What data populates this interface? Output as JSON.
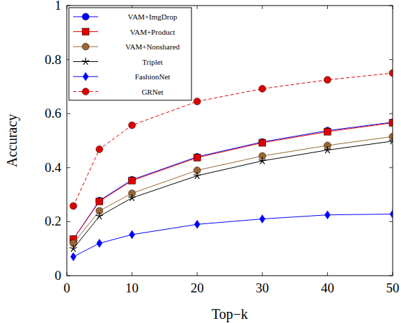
{
  "chart_data": {
    "type": "line",
    "x_label": "Top−k",
    "y_label": "Accuracy",
    "x": [
      1,
      5,
      10,
      20,
      30,
      40,
      50
    ],
    "xlim": [
      0,
      50
    ],
    "xticks": [
      0,
      10,
      20,
      30,
      40,
      50
    ],
    "ylim": [
      0,
      1
    ],
    "yticks": [
      0,
      0.2,
      0.4,
      0.6,
      0.8,
      1
    ],
    "grid": false,
    "legend": "top-left",
    "series": [
      {
        "name": "VAM+ImgDrop",
        "color": "#0000ff",
        "marker": "circle",
        "line_style": "solid",
        "values": [
          0.135,
          0.278,
          0.355,
          0.44,
          0.495,
          0.537,
          0.568
        ]
      },
      {
        "name": "VAM+Product",
        "color": "#e00000",
        "marker": "square",
        "line_style": "solid",
        "values": [
          0.135,
          0.275,
          0.352,
          0.437,
          0.492,
          0.533,
          0.566
        ]
      },
      {
        "name": "VAM+Nonshared",
        "color": "#996633",
        "marker": "circle",
        "line_style": "solid",
        "values": [
          0.12,
          0.24,
          0.305,
          0.39,
          0.443,
          0.482,
          0.515
        ]
      },
      {
        "name": "Triplet",
        "color": "#000000",
        "marker": "star",
        "line_style": "solid",
        "values": [
          0.1,
          0.22,
          0.288,
          0.37,
          0.425,
          0.465,
          0.498
        ]
      },
      {
        "name": "FashionNet",
        "color": "#0000ff",
        "marker": "diamond",
        "line_style": "solid",
        "values": [
          0.07,
          0.12,
          0.152,
          0.19,
          0.21,
          0.225,
          0.228
        ]
      },
      {
        "name": "GRNet",
        "color": "#e00000",
        "marker": "circle",
        "line_style": "dashed",
        "values": [
          0.258,
          0.468,
          0.557,
          0.645,
          0.692,
          0.725,
          0.75
        ]
      }
    ]
  }
}
